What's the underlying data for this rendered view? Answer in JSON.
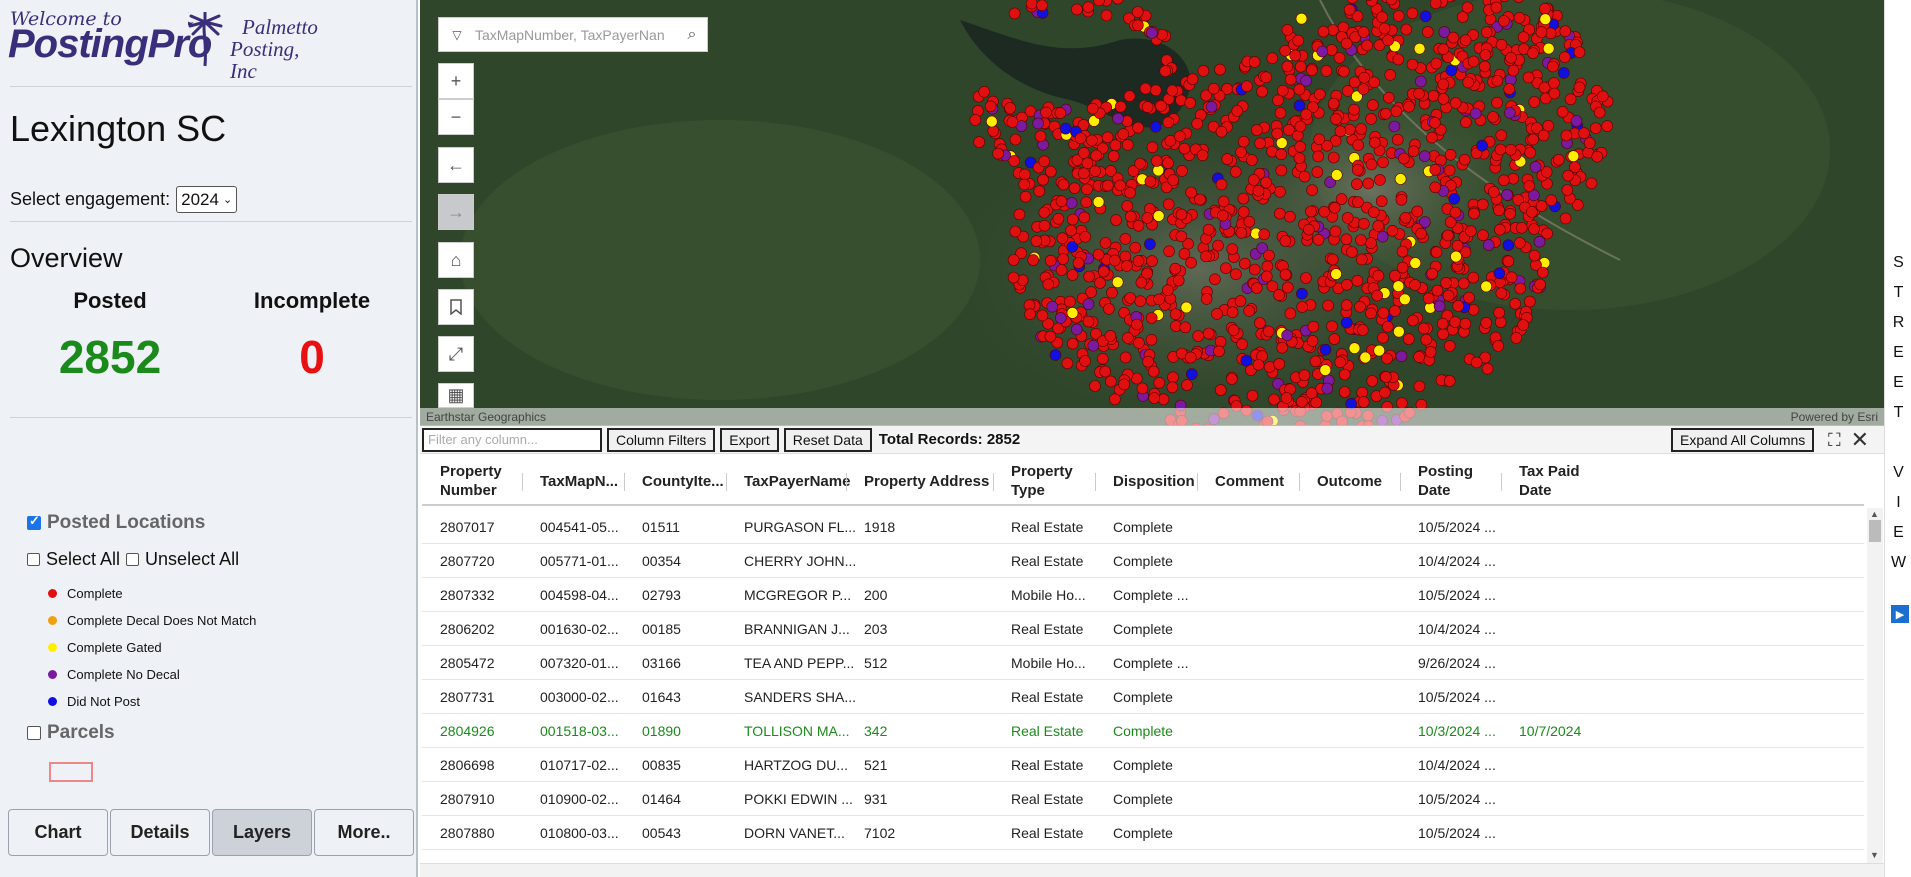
{
  "brand": {
    "welcome": "Welcome to",
    "product": "PostingPro",
    "company_line1": "Palmetto",
    "company_line2": "Posting, Inc"
  },
  "county": "Lexington SC",
  "engagement": {
    "label": "Select engagement:",
    "value": "2024"
  },
  "overview": {
    "title": "Overview",
    "posted_label": "Posted",
    "posted_value": "2852",
    "incomplete_label": "Incomplete",
    "incomplete_value": "0"
  },
  "layers": {
    "posted_locations": "Posted Locations",
    "select_all": "Select All",
    "unselect_all": "Unselect All",
    "legend": [
      {
        "label": "Complete",
        "color": "#e01010"
      },
      {
        "label": "Complete Decal Does Not Match",
        "color": "#f0a010"
      },
      {
        "label": "Complete Gated",
        "color": "#ffee00"
      },
      {
        "label": "Complete No Decal",
        "color": "#7a1aa0"
      },
      {
        "label": "Did Not Post",
        "color": "#1010e0"
      }
    ],
    "parcels": "Parcels"
  },
  "tabs": [
    "Chart",
    "Details",
    "Layers",
    "More.."
  ],
  "map": {
    "search_placeholder": "TaxMapNumber, TaxPayerNan",
    "attribution_left": "Earthstar Geographics",
    "attribution_right": "Powered by Esri"
  },
  "rail": {
    "letters": [
      "S",
      "T",
      "R",
      "E",
      "E",
      "T",
      "",
      "V",
      "I",
      "E",
      "W"
    ]
  },
  "table": {
    "filter_placeholder": "Filter any column...",
    "column_filters": "Column Filters",
    "export": "Export",
    "reset_data": "Reset Data",
    "total_records": "Total Records: 2852",
    "expand_all": "Expand All Columns",
    "columns": [
      {
        "line1": "Property",
        "line2": "Number"
      },
      {
        "line1": "TaxMapN...",
        "line2": ""
      },
      {
        "line1": "CountyIte...",
        "line2": ""
      },
      {
        "line1": "TaxPayerName",
        "line2": ""
      },
      {
        "line1": "Property Address",
        "line2": ""
      },
      {
        "line1": "Property",
        "line2": "Type"
      },
      {
        "line1": "Disposition",
        "line2": ""
      },
      {
        "line1": "Comment",
        "line2": ""
      },
      {
        "line1": "Outcome",
        "line2": ""
      },
      {
        "line1": "Posting",
        "line2": "Date"
      },
      {
        "line1": "Tax Paid",
        "line2": "Date"
      }
    ],
    "rows": [
      [
        "2807017",
        "004541-05...",
        "01511",
        "PURGASON FL...",
        "1918",
        "Real Estate",
        "Complete",
        "",
        "",
        "10/5/2024 ...",
        ""
      ],
      [
        "2807720",
        "005771-01...",
        "00354",
        "CHERRY JOHN...",
        "",
        "Real Estate",
        "Complete",
        "",
        "",
        "10/4/2024 ...",
        ""
      ],
      [
        "2807332",
        "004598-04...",
        "02793",
        "MCGREGOR P...",
        "200",
        "Mobile Ho...",
        "Complete ...",
        "",
        "",
        "10/5/2024 ...",
        ""
      ],
      [
        "2806202",
        "001630-02...",
        "00185",
        "BRANNIGAN J...",
        "203",
        "Real Estate",
        "Complete",
        "",
        "",
        "10/4/2024 ...",
        ""
      ],
      [
        "2805472",
        "007320-01...",
        "03166",
        "TEA AND PEPP...",
        "512",
        "Mobile Ho...",
        "Complete ...",
        "",
        "",
        "9/26/2024 ...",
        ""
      ],
      [
        "2807731",
        "003000-02...",
        "01643",
        "SANDERS SHA...",
        "",
        "Real Estate",
        "Complete",
        "",
        "",
        "10/5/2024 ...",
        ""
      ],
      [
        "2804926",
        "001518-03...",
        "01890",
        "TOLLISON MA...",
        "342",
        "Real Estate",
        "Complete",
        "",
        "",
        "10/3/2024 ...",
        "10/7/2024"
      ],
      [
        "2806698",
        "010717-02...",
        "00835",
        "HARTZOG DU...",
        "521",
        "Real Estate",
        "Complete",
        "",
        "",
        "10/4/2024 ...",
        ""
      ],
      [
        "2807910",
        "010900-02...",
        "01464",
        "POKKI EDWIN ...",
        "931",
        "Real Estate",
        "Complete",
        "",
        "",
        "10/5/2024 ...",
        ""
      ],
      [
        "2807880",
        "010800-03...",
        "00543",
        "DORN VANET...",
        "7102",
        "Real Estate",
        "Complete",
        "",
        "",
        "10/5/2024 ...",
        ""
      ]
    ],
    "paid_row_index": 6
  }
}
